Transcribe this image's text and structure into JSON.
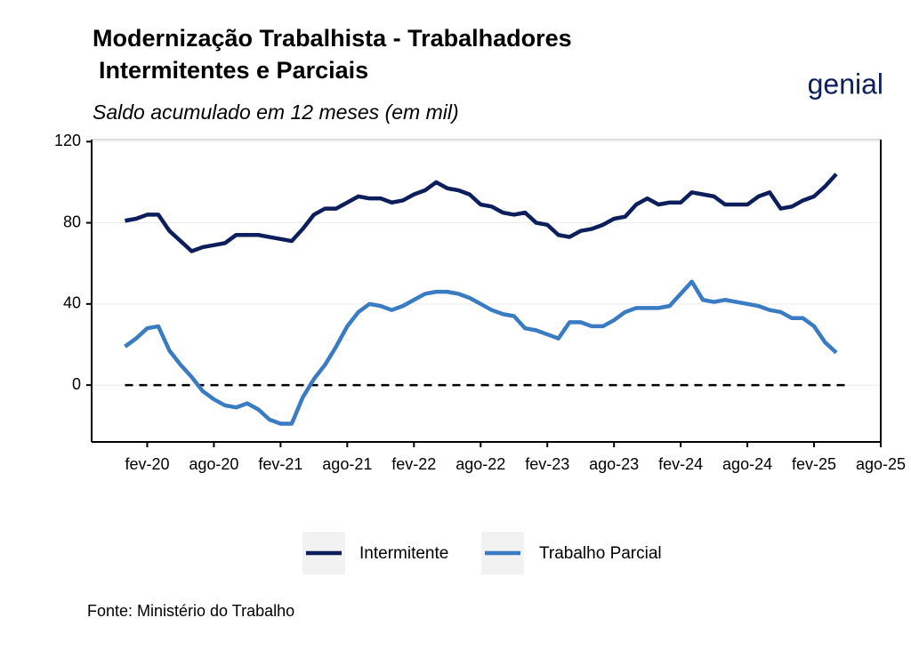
{
  "chart_data": {
    "type": "line",
    "title": [
      "Modernização Trabalhista - Trabalhadores",
      "Intermitentes e Parciais"
    ],
    "subtitle": "Saldo acumulado em 12 meses (em mil)",
    "logo": "genial",
    "source": "Fonte: Ministério do Trabalho",
    "x": [
      "2019-12",
      "2020-01",
      "2020-02",
      "2020-03",
      "2020-04",
      "2020-05",
      "2020-06",
      "2020-07",
      "2020-08",
      "2020-09",
      "2020-10",
      "2020-11",
      "2020-12",
      "2021-01",
      "2021-02",
      "2021-03",
      "2021-04",
      "2021-05",
      "2021-06",
      "2021-07",
      "2021-08",
      "2021-09",
      "2021-10",
      "2021-11",
      "2021-12",
      "2022-01",
      "2022-02",
      "2022-03",
      "2022-04",
      "2022-05",
      "2022-06",
      "2022-07",
      "2022-08",
      "2022-09",
      "2022-10",
      "2022-11",
      "2022-12",
      "2023-01",
      "2023-02",
      "2023-03",
      "2023-04",
      "2023-05",
      "2023-06",
      "2023-07",
      "2023-08",
      "2023-09",
      "2023-10",
      "2023-11",
      "2023-12",
      "2024-01",
      "2024-02",
      "2024-03",
      "2024-04",
      "2024-05",
      "2024-06",
      "2024-07",
      "2024-08",
      "2024-09",
      "2024-10",
      "2024-11",
      "2024-12",
      "2025-01",
      "2025-02",
      "2025-03",
      "2025-04"
    ],
    "series": [
      {
        "name": "Intermitente",
        "color": "#0c1f5c",
        "values": [
          81,
          82,
          84,
          84,
          76,
          71,
          66,
          68,
          69,
          70,
          74,
          74,
          74,
          73,
          72,
          71,
          77,
          84,
          87,
          87,
          90,
          93,
          92,
          92,
          90,
          91,
          94,
          96,
          100,
          97,
          96,
          94,
          89,
          88,
          85,
          84,
          85,
          80,
          79,
          74,
          73,
          76,
          77,
          79,
          82,
          83,
          89,
          92,
          89,
          90,
          90,
          95,
          94,
          93,
          89,
          89,
          89,
          93,
          95,
          87,
          88,
          91,
          93,
          98,
          104
        ]
      },
      {
        "name": "Trabalho Parcial",
        "color": "#3a7cc4",
        "values": [
          19,
          23,
          28,
          29,
          17,
          10,
          4,
          -3,
          -7,
          -10,
          -11,
          -9,
          -12,
          -17,
          -19,
          -19,
          -6,
          3,
          10,
          19,
          29,
          36,
          40,
          39,
          37,
          39,
          42,
          45,
          46,
          46,
          45,
          43,
          40,
          37,
          35,
          34,
          28,
          27,
          25,
          23,
          31,
          31,
          29,
          29,
          32,
          36,
          38,
          38,
          38,
          39,
          45,
          51,
          42,
          41,
          42,
          41,
          40,
          39,
          37,
          36,
          33,
          33,
          29,
          21,
          16
        ]
      }
    ],
    "hline": 0,
    "xlim": [
      "2019-09",
      "2025-08"
    ],
    "xticks": [
      {
        "value": "2020-02",
        "label": "fev-20"
      },
      {
        "value": "2020-08",
        "label": "ago-20"
      },
      {
        "value": "2021-02",
        "label": "fev-21"
      },
      {
        "value": "2021-08",
        "label": "ago-21"
      },
      {
        "value": "2022-02",
        "label": "fev-22"
      },
      {
        "value": "2022-08",
        "label": "ago-22"
      },
      {
        "value": "2023-02",
        "label": "fev-23"
      },
      {
        "value": "2023-08",
        "label": "ago-23"
      },
      {
        "value": "2024-02",
        "label": "fev-24"
      },
      {
        "value": "2024-08",
        "label": "ago-24"
      },
      {
        "value": "2025-02",
        "label": "fev-25"
      },
      {
        "value": "2025-08",
        "label": "ago-25"
      }
    ],
    "ylim": [
      -28,
      121
    ],
    "yticks": [
      0,
      40,
      80,
      120
    ],
    "grid": true,
    "legend": "bottom"
  }
}
